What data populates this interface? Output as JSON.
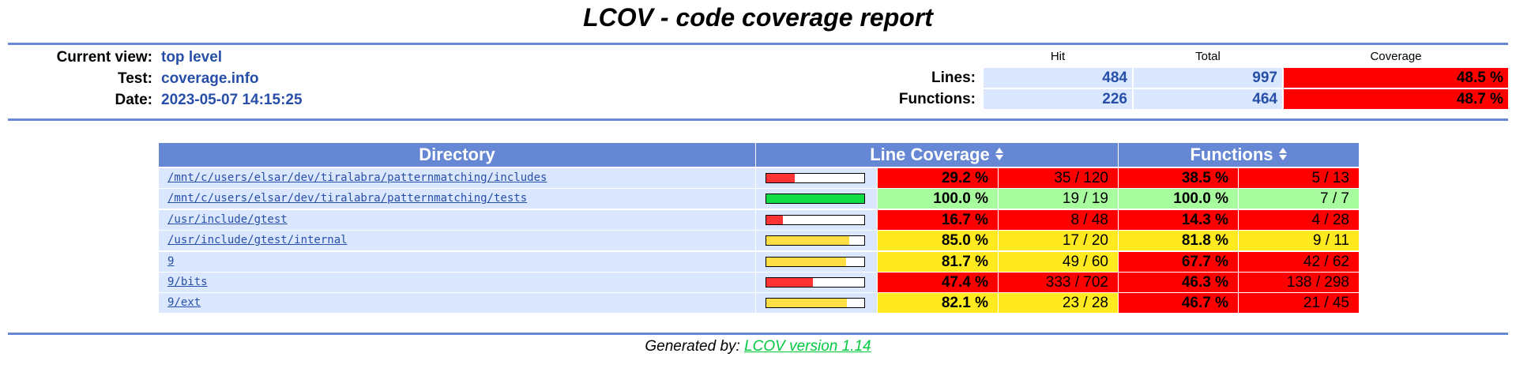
{
  "title": "LCOV - code coverage report",
  "header": {
    "current_view_label": "Current view:",
    "current_view": "top level",
    "test_label": "Test:",
    "test": "coverage.info",
    "date_label": "Date:",
    "date": "2023-05-07 14:15:25"
  },
  "summary": {
    "col_hit": "Hit",
    "col_total": "Total",
    "col_coverage": "Coverage",
    "lines_label": "Lines:",
    "lines_hit": "484",
    "lines_total": "997",
    "lines_coverage": "48.5 %",
    "functions_label": "Functions:",
    "functions_hit": "226",
    "functions_total": "464",
    "functions_coverage": "48.7 %"
  },
  "table": {
    "col_directory": "Directory",
    "col_line_coverage": "Line Coverage",
    "col_functions": "Functions",
    "rows": [
      {
        "dir": "/mnt/c/users/elsar/dev/tiralabra/patternmatching/includes",
        "line_fraction": 0.292,
        "line_pct": "29.2 %",
        "line_frac": "35 / 120",
        "line_level": "lo",
        "func_pct": "38.5 %",
        "func_frac": "5 / 13",
        "func_level": "lo"
      },
      {
        "dir": "/mnt/c/users/elsar/dev/tiralabra/patternmatching/tests",
        "line_fraction": 1.0,
        "line_pct": "100.0 %",
        "line_frac": "19 / 19",
        "line_level": "hi",
        "func_pct": "100.0 %",
        "func_frac": "7 / 7",
        "func_level": "hi"
      },
      {
        "dir": "/usr/include/gtest",
        "line_fraction": 0.167,
        "line_pct": "16.7 %",
        "line_frac": "8 / 48",
        "line_level": "lo",
        "func_pct": "14.3 %",
        "func_frac": "4 / 28",
        "func_level": "lo"
      },
      {
        "dir": "/usr/include/gtest/internal",
        "line_fraction": 0.85,
        "line_pct": "85.0 %",
        "line_frac": "17 / 20",
        "line_level": "med",
        "func_pct": "81.8 %",
        "func_frac": "9 / 11",
        "func_level": "med"
      },
      {
        "dir": "9",
        "line_fraction": 0.817,
        "line_pct": "81.7 %",
        "line_frac": "49 / 60",
        "line_level": "med",
        "func_pct": "67.7 %",
        "func_frac": "42 / 62",
        "func_level": "lo"
      },
      {
        "dir": "9/bits",
        "line_fraction": 0.474,
        "line_pct": "47.4 %",
        "line_frac": "333 / 702",
        "line_level": "lo",
        "func_pct": "46.3 %",
        "func_frac": "138 / 298",
        "func_level": "lo"
      },
      {
        "dir": "9/ext",
        "line_fraction": 0.821,
        "line_pct": "82.1 %",
        "line_frac": "23 / 28",
        "line_level": "med",
        "func_pct": "46.7 %",
        "func_frac": "21 / 45",
        "func_level": "lo"
      }
    ]
  },
  "colors": {
    "bar_lo": "#ff3333",
    "bar_med": "#ffdd44",
    "bar_hi": "#11dd44"
  },
  "footer": {
    "prefix": "Generated by: ",
    "link": "LCOV version 1.14"
  }
}
